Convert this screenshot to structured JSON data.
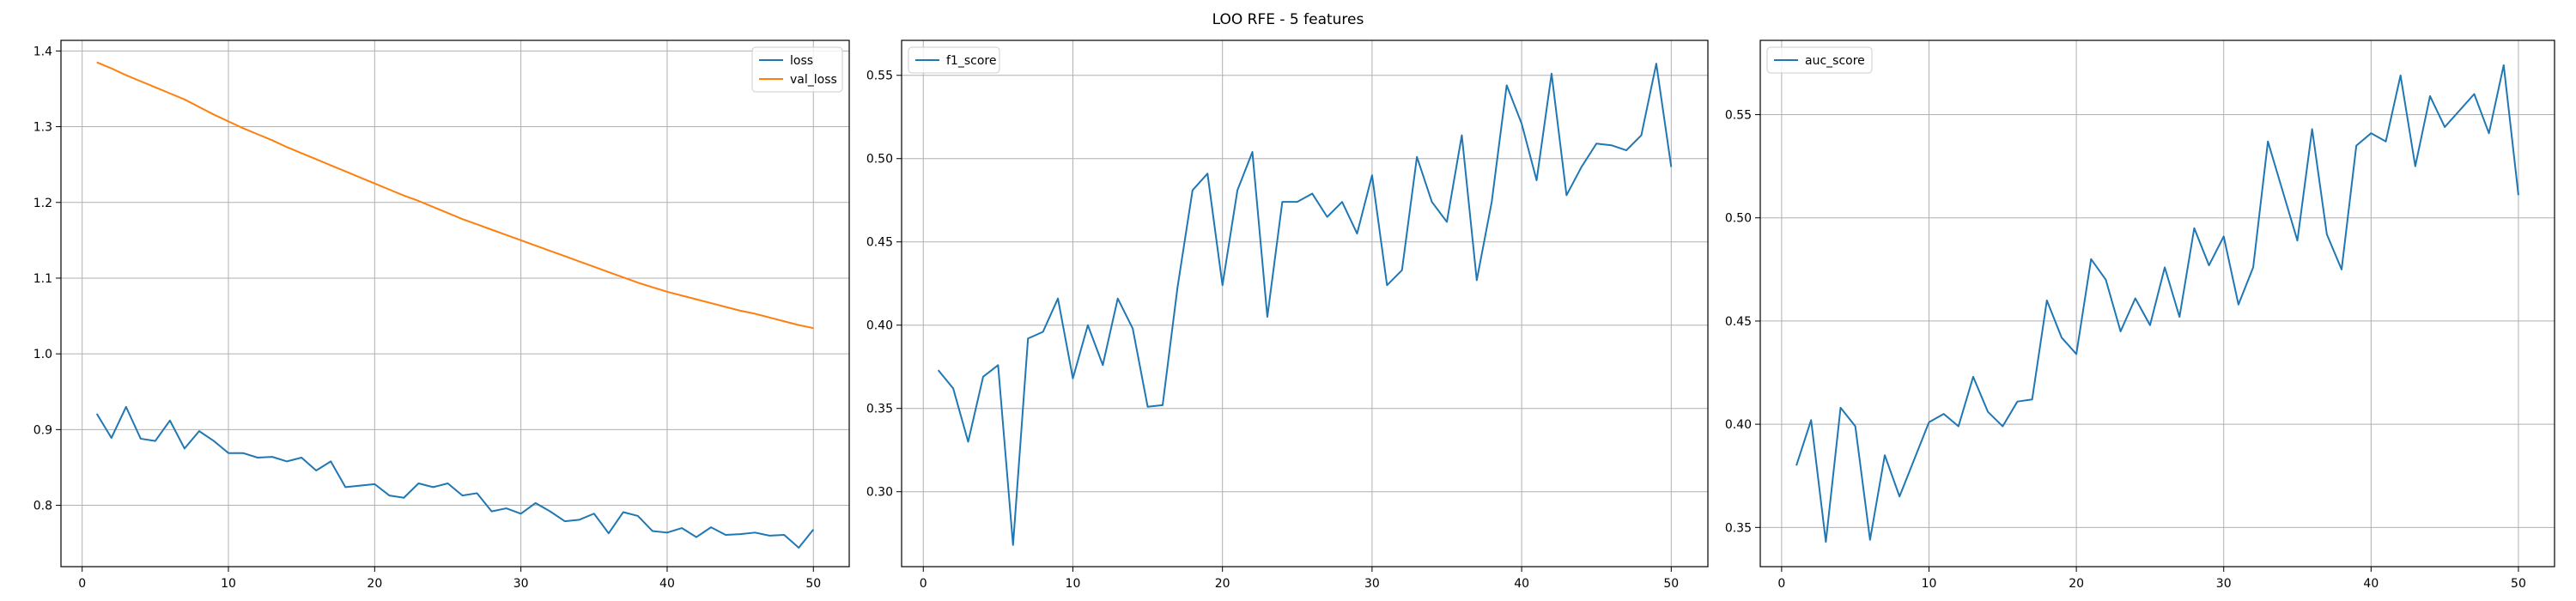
{
  "title": "LOO RFE - 5 features",
  "colors": {
    "loss": "#1f77b4",
    "val_loss": "#ff7f0e",
    "f1_score": "#1f77b4",
    "auc_score": "#1f77b4",
    "grid": "#b0b0b0"
  },
  "chart_data": [
    {
      "type": "line",
      "xlim": [
        -1.45,
        52.45
      ],
      "ylim": [
        0.719,
        1.414
      ],
      "xticks": [
        0,
        10,
        20,
        30,
        40,
        50
      ],
      "xtick_labels": [
        "0",
        "10",
        "20",
        "30",
        "40",
        "50"
      ],
      "yticks": [
        0.8,
        0.9,
        1.0,
        1.1,
        1.2,
        1.3,
        1.4
      ],
      "ytick_labels": [
        "0.8",
        "0.9",
        "1.0",
        "1.1",
        "1.2",
        "1.3",
        "1.4"
      ],
      "grid": true,
      "legend": "top-right",
      "x": [
        1,
        2,
        3,
        4,
        5,
        6,
        7,
        8,
        9,
        10,
        11,
        12,
        13,
        14,
        15,
        16,
        17,
        18,
        19,
        20,
        21,
        22,
        23,
        24,
        25,
        26,
        27,
        28,
        29,
        30,
        31,
        32,
        33,
        34,
        35,
        36,
        37,
        38,
        39,
        40,
        41,
        42,
        43,
        44,
        45,
        46,
        47,
        48,
        49,
        50
      ],
      "series": [
        {
          "name": "loss",
          "color": "#1f77b4",
          "values": [
            0.921,
            0.889,
            0.93,
            0.888,
            0.885,
            0.912,
            0.875,
            0.898,
            0.885,
            0.869,
            0.869,
            0.863,
            0.864,
            0.858,
            0.863,
            0.846,
            0.858,
            0.824,
            0.826,
            0.828,
            0.813,
            0.81,
            0.829,
            0.824,
            0.829,
            0.813,
            0.816,
            0.792,
            0.796,
            0.789,
            0.803,
            0.792,
            0.779,
            0.781,
            0.789,
            0.763,
            0.791,
            0.786,
            0.766,
            0.764,
            0.77,
            0.758,
            0.771,
            0.761,
            0.762,
            0.764,
            0.76,
            0.761,
            0.744,
            0.768
          ]
        },
        {
          "name": "val_loss",
          "color": "#ff7f0e",
          "values": [
            1.385,
            1.377,
            1.368,
            1.36,
            1.352,
            1.344,
            1.336,
            1.326,
            1.316,
            1.307,
            1.298,
            1.29,
            1.282,
            1.273,
            1.265,
            1.257,
            1.249,
            1.241,
            1.233,
            1.225,
            1.217,
            1.209,
            1.202,
            1.194,
            1.186,
            1.178,
            1.171,
            1.164,
            1.157,
            1.15,
            1.143,
            1.136,
            1.129,
            1.122,
            1.115,
            1.108,
            1.101,
            1.094,
            1.088,
            1.082,
            1.077,
            1.072,
            1.067,
            1.062,
            1.057,
            1.053,
            1.048,
            1.043,
            1.038,
            1.034
          ]
        }
      ]
    },
    {
      "type": "line",
      "xlim": [
        -1.45,
        52.45
      ],
      "ylim": [
        0.255,
        0.571
      ],
      "xticks": [
        0,
        10,
        20,
        30,
        40,
        50
      ],
      "xtick_labels": [
        "0",
        "10",
        "20",
        "30",
        "40",
        "50"
      ],
      "yticks": [
        0.3,
        0.35,
        0.4,
        0.45,
        0.5,
        0.55
      ],
      "ytick_labels": [
        "0.30",
        "0.35",
        "0.40",
        "0.45",
        "0.50",
        "0.55"
      ],
      "grid": true,
      "legend": "top-left",
      "x": [
        1,
        2,
        3,
        4,
        5,
        6,
        7,
        8,
        9,
        10,
        11,
        12,
        13,
        14,
        15,
        16,
        17,
        18,
        19,
        20,
        21,
        22,
        23,
        24,
        25,
        26,
        27,
        28,
        29,
        30,
        31,
        32,
        33,
        34,
        35,
        36,
        37,
        38,
        39,
        40,
        41,
        42,
        43,
        44,
        45,
        46,
        47,
        48,
        49,
        50
      ],
      "series": [
        {
          "name": "f1_score",
          "color": "#1f77b4",
          "values": [
            0.373,
            0.362,
            0.33,
            0.369,
            0.376,
            0.268,
            0.392,
            0.396,
            0.416,
            0.368,
            0.4,
            0.376,
            0.416,
            0.398,
            0.351,
            0.352,
            0.423,
            0.481,
            0.491,
            0.424,
            0.481,
            0.504,
            0.405,
            0.474,
            0.474,
            0.479,
            0.465,
            0.474,
            0.455,
            0.49,
            0.424,
            0.433,
            0.501,
            0.474,
            0.462,
            0.514,
            0.427,
            0.474,
            0.544,
            0.521,
            0.487,
            0.551,
            0.478,
            0.495,
            0.509,
            0.508,
            0.505,
            0.514,
            0.557,
            0.495
          ]
        }
      ]
    },
    {
      "type": "line",
      "xlim": [
        -1.45,
        52.45
      ],
      "ylim": [
        0.331,
        0.586
      ],
      "xticks": [
        0,
        10,
        20,
        30,
        40,
        50
      ],
      "xtick_labels": [
        "0",
        "10",
        "20",
        "30",
        "40",
        "50"
      ],
      "yticks": [
        0.35,
        0.4,
        0.45,
        0.5,
        0.55
      ],
      "ytick_labels": [
        "0.35",
        "0.40",
        "0.45",
        "0.50",
        "0.55"
      ],
      "grid": true,
      "legend": "top-left",
      "x": [
        1,
        2,
        3,
        4,
        5,
        6,
        7,
        8,
        9,
        10,
        11,
        12,
        13,
        14,
        15,
        16,
        17,
        18,
        19,
        20,
        21,
        22,
        23,
        24,
        25,
        26,
        27,
        28,
        29,
        30,
        31,
        32,
        33,
        34,
        35,
        36,
        37,
        38,
        39,
        40,
        41,
        42,
        43,
        44,
        45,
        46,
        47,
        48,
        49,
        50
      ],
      "series": [
        {
          "name": "auc_score",
          "color": "#1f77b4",
          "values": [
            0.38,
            0.402,
            0.343,
            0.408,
            0.399,
            0.344,
            0.385,
            0.365,
            0.383,
            0.401,
            0.405,
            0.399,
            0.423,
            0.406,
            0.399,
            0.411,
            0.412,
            0.46,
            0.442,
            0.434,
            0.48,
            0.47,
            0.445,
            0.461,
            0.448,
            0.476,
            0.452,
            0.495,
            0.477,
            0.491,
            0.458,
            0.476,
            0.537,
            0.513,
            0.489,
            0.543,
            0.492,
            0.475,
            0.535,
            0.541,
            0.537,
            0.569,
            0.525,
            0.559,
            0.544,
            0.552,
            0.56,
            0.541,
            0.574,
            0.511
          ]
        }
      ]
    }
  ]
}
